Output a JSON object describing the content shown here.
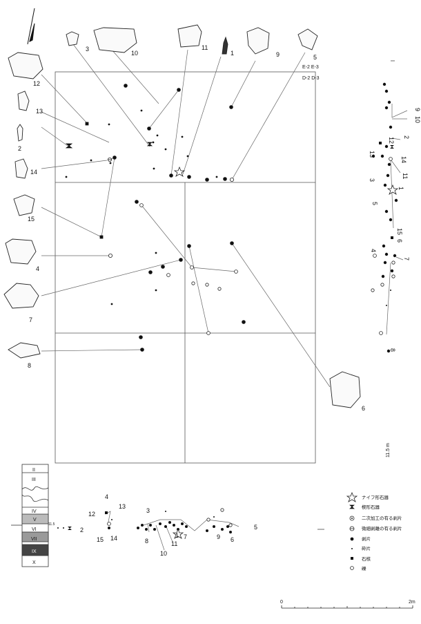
{
  "grid_labels": [
    "E-2  E-3",
    "D-2  D-3"
  ],
  "artifact_labels": {
    "a1": "1",
    "a2": "2",
    "a3": "3",
    "a4": "4",
    "a5": "5",
    "a6": "6",
    "a7": "7",
    "a8": "8",
    "a9": "9",
    "a10": "10",
    "a11": "11",
    "a12": "12",
    "a13": "13",
    "a14": "14",
    "a15": "15"
  },
  "section_right": {
    "labels": [
      "9",
      "10",
      "2",
      "12",
      "13",
      "14",
      "11",
      "3",
      "1",
      "5",
      "15",
      "6",
      "4",
      "7",
      "8"
    ],
    "elevation": "11.5 m"
  },
  "section_bottom": {
    "elevation": "11.5",
    "labels": [
      "4",
      "12",
      "13",
      "2",
      "15",
      "14",
      "3",
      "8",
      "10",
      "11",
      "1",
      "7",
      "9",
      "6",
      "5"
    ]
  },
  "strata": [
    "II",
    "III",
    "IV",
    "V",
    "VI",
    "VII",
    "IX",
    "X"
  ],
  "legend": [
    {
      "symbol": "star",
      "label": "ナイフ形石器"
    },
    {
      "symbol": "hourglass",
      "label": "楔形石器"
    },
    {
      "symbol": "circle-dot",
      "label": "二次加工の有る剥片"
    },
    {
      "symbol": "circle-bar",
      "label": "微細剥離の有る剥片"
    },
    {
      "symbol": "dot",
      "label": "剥片"
    },
    {
      "symbol": "small-dot",
      "label": "砕片"
    },
    {
      "symbol": "square",
      "label": "石核"
    },
    {
      "symbol": "open-circle",
      "label": "礫"
    }
  ],
  "scale": {
    "start": "0",
    "end": "2m"
  }
}
